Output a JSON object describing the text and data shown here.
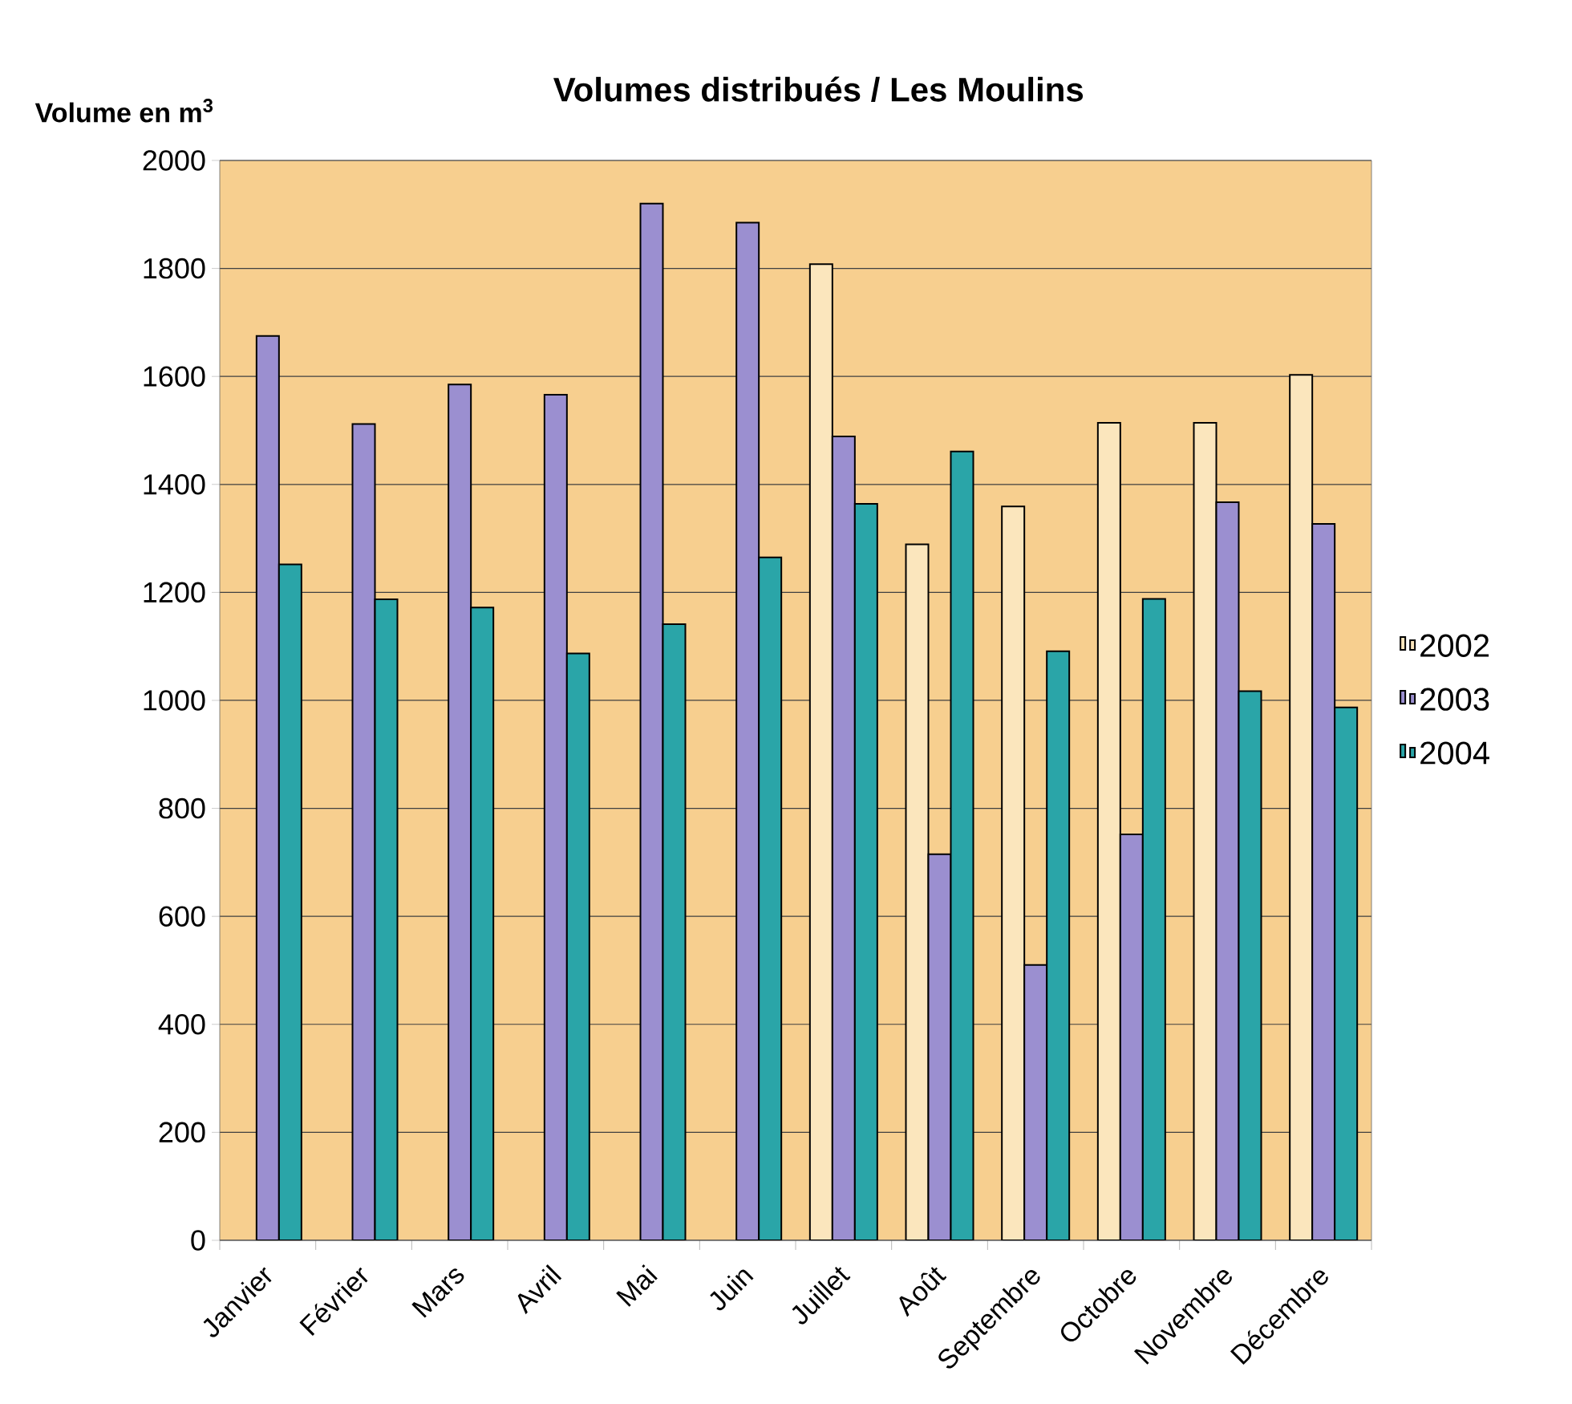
{
  "chart_data": {
    "type": "bar",
    "title": "Volumes distribués / Les Moulins",
    "ylabel": "Volume en m$^{3}$",
    "categories": [
      "Janvier",
      "Février",
      "Mars",
      "Avril",
      "Mai",
      "Juin",
      "Juillet",
      "Août",
      "Septembre",
      "Octobre",
      "Novembre",
      "Décembre"
    ],
    "series": [
      {
        "name": "2002",
        "color": "#fbe6bd",
        "values": [
          null,
          null,
          null,
          null,
          null,
          null,
          1808,
          1289,
          1359,
          1514,
          1514,
          1603
        ]
      },
      {
        "name": "2003",
        "color": "#9b8fd0",
        "values": [
          1675,
          1512,
          1585,
          1566,
          1920,
          1885,
          1489,
          715,
          510,
          752,
          1367,
          1327
        ]
      },
      {
        "name": "2004",
        "color": "#2aa5a8",
        "values": [
          1252,
          1187,
          1172,
          1087,
          1141,
          1265,
          1364,
          1461,
          1091,
          1188,
          1017,
          987
        ]
      }
    ],
    "ylim": [
      0,
      2000
    ],
    "yticks": [
      0,
      200,
      400,
      600,
      800,
      1000,
      1200,
      1400,
      1600,
      1800,
      2000
    ],
    "grid": "y",
    "legend": "right"
  }
}
